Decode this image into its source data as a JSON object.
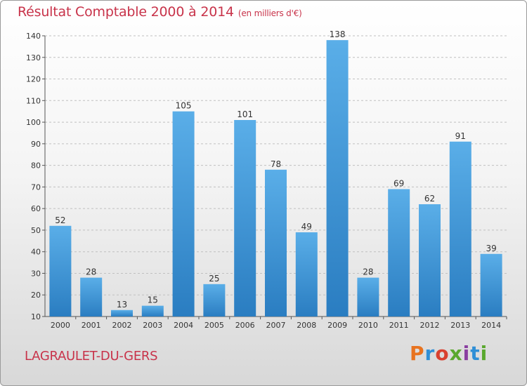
{
  "header": {
    "title": "Résultat Comptable 2000 à 2014",
    "subtitle": "(en milliers d'€)"
  },
  "footer": {
    "location": "LAGRAULET-DU-GERS",
    "logo_text": "Proxiti",
    "logo_colors": [
      "#e8731f",
      "#2f8fd6",
      "#d9402f",
      "#5aa82e",
      "#8a3fa0",
      "#2f8fd6",
      "#5aa82e"
    ]
  },
  "colors": {
    "bar_top": "#5aaee8",
    "bar_bottom": "#2a7dc1",
    "axis": "#555555",
    "grid": "#c0c0c0"
  },
  "chart_data": {
    "type": "bar",
    "categories": [
      "2000",
      "2001",
      "2002",
      "2003",
      "2004",
      "2005",
      "2006",
      "2007",
      "2008",
      "2009",
      "2010",
      "2011",
      "2012",
      "2013",
      "2014"
    ],
    "values": [
      52,
      28,
      13,
      15,
      105,
      25,
      101,
      78,
      49,
      138,
      28,
      69,
      62,
      91,
      39
    ],
    "yticks": [
      10,
      20,
      30,
      40,
      50,
      60,
      70,
      80,
      90,
      100,
      110,
      120,
      130,
      140
    ],
    "ylim": [
      10,
      140
    ],
    "grid": true,
    "legend": "none"
  }
}
